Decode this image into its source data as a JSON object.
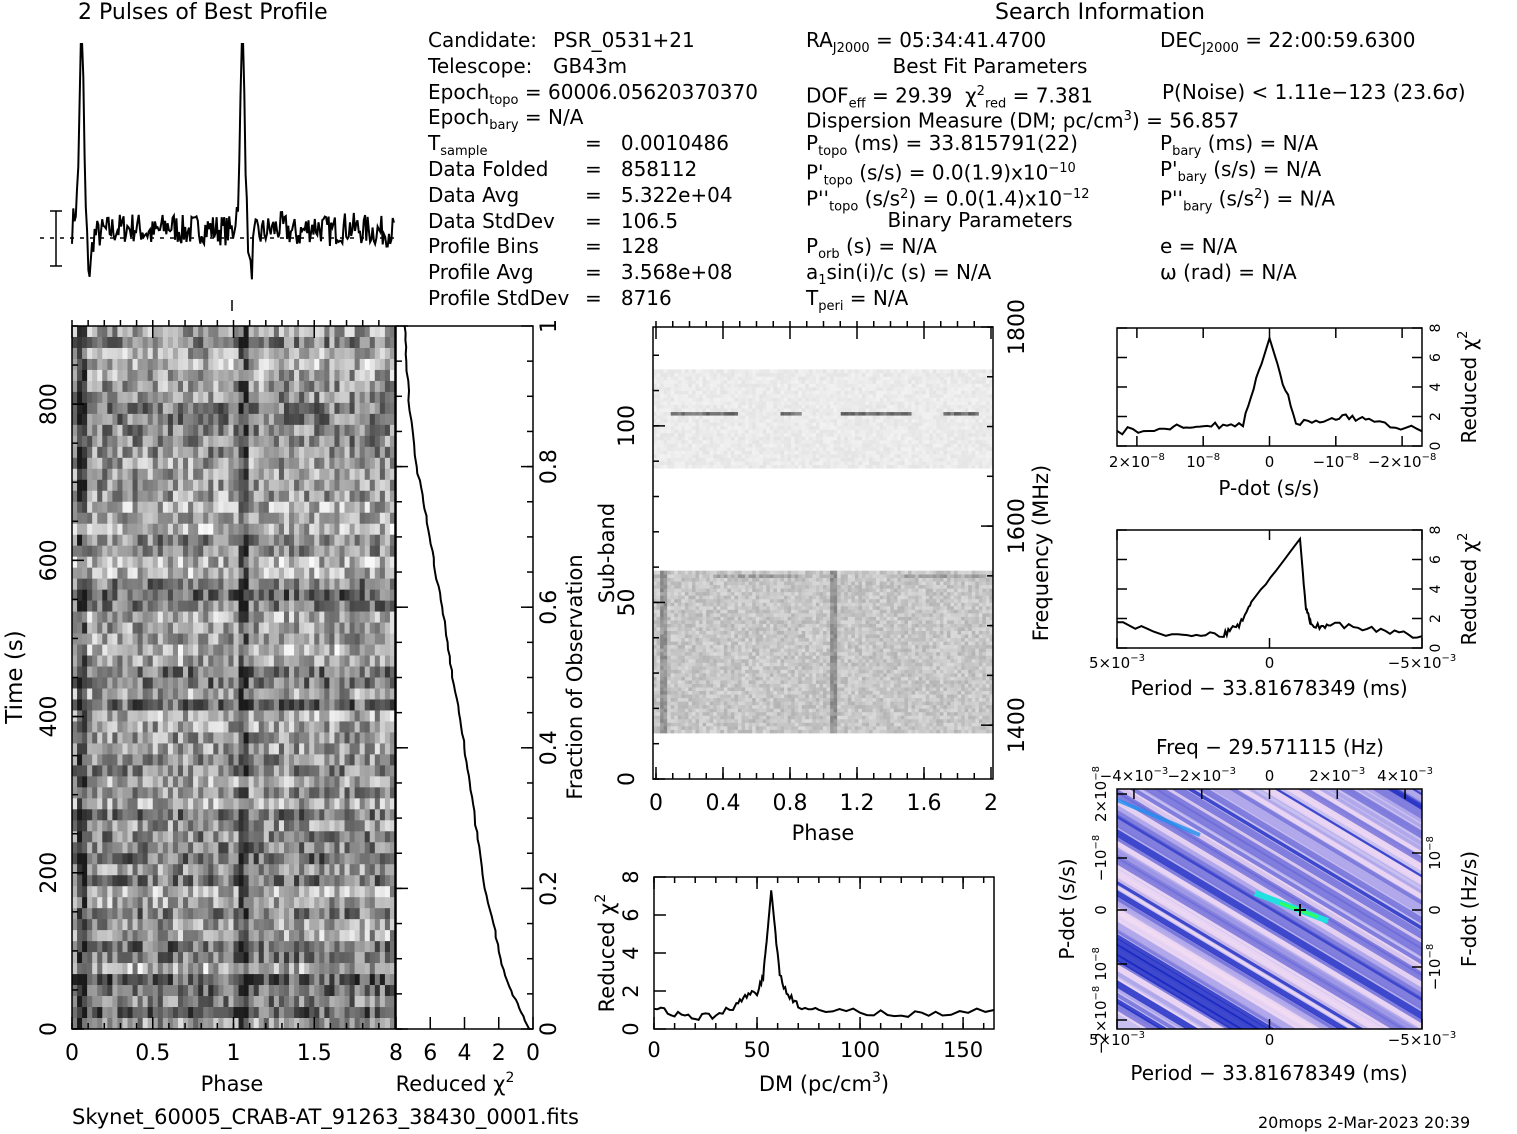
{
  "titles": {
    "profile": "2 Pulses of Best Profile",
    "search": "Search Information",
    "best_fit": "Best Fit Parameters",
    "binary": "Binary Parameters",
    "freq": "Freq − 29.571115 (Hz)"
  },
  "footer": {
    "filename": "Skynet_60005_CRAB-AT_91263_38430_0001.fits",
    "stamp": "20mops   2-Mar-2023 20:39"
  },
  "info": {
    "candidate_label": "Candidate:",
    "candidate_value": "PSR_0531+21",
    "telescope_label": "Telescope:",
    "telescope_value": "GB43m",
    "epoch_topo": "60006.05620370370",
    "epoch_bary": "N/A",
    "t_sample": "0.0010486",
    "data_folded_label": "Data Folded",
    "data_folded": "858112",
    "data_avg_label": "Data Avg",
    "data_avg": "5.322e+04",
    "data_stddev_label": "Data StdDev",
    "data_stddev": "106.5",
    "profile_bins_label": "Profile Bins",
    "profile_bins": "128",
    "profile_avg_label": "Profile Avg",
    "profile_avg": "3.568e+08",
    "profile_stddev_label": "Profile StdDev",
    "profile_stddev": "8716",
    "ra": "05:34:41.4700",
    "dec": "22:00:59.6300",
    "dof_eff": "29.39",
    "chi2_red": "7.381",
    "p_noise": "P(Noise) < 1.11e−123  (23.6σ)",
    "dm_line": "Dispersion Measure (DM; pc/cm",
    "dm_value": ") = 56.857",
    "p_topo": "(ms) =  33.815791(22)",
    "p_bary": "(ms) = N/A",
    "pd_topo": "(s/s) = 0.0(1.9)x10",
    "pd_topo_exp": "−10",
    "pd_bary": "(s/s) = N/A",
    "pdd_topo": ") = 0.0(1.4)x10",
    "pdd_topo_exp": "−12",
    "pdd_bary": ") = N/A",
    "p_orb": "(s) = N/A",
    "e": "e = N/A",
    "a1sini": "sin(i)/c (s) = N/A",
    "omega": "ω (rad) = N/A",
    "t_peri": "= N/A"
  },
  "labels": {
    "time_s": "Time (s)",
    "phase": "Phase",
    "reduced_chi2": "Reduced χ",
    "fraction_obs": "Fraction of Observation",
    "sub_band": "Sub-band",
    "frequency": "Frequency (MHz)",
    "dm_axis": "DM (pc/cm",
    "pdot_axis": "P-dot (s/s)",
    "period_axis": "Period − 33.81678349 (ms)",
    "fdot_axis": "F-dot (Hz/s)"
  },
  "ticks": {
    "time": [
      "0",
      "200",
      "400",
      "600",
      "800"
    ],
    "phase_time": [
      "0",
      "0.5",
      "1",
      "1.5"
    ],
    "chi2_bottom": [
      "8",
      "6",
      "4",
      "2",
      "0"
    ],
    "fraction": [
      "0",
      "0.2",
      "0.4",
      "0.6",
      "0.8",
      "1"
    ],
    "subband": [
      "0",
      "50",
      "100"
    ],
    "freq_mhz": [
      "1400",
      "1600",
      "1800"
    ],
    "phase_sub": [
      "0",
      "0.4",
      "0.8",
      "1.2",
      "1.6",
      "2"
    ],
    "chi2_small": [
      "0",
      "2",
      "4",
      "6",
      "8"
    ],
    "dm": [
      "0",
      "50",
      "100",
      "150"
    ],
    "pdot_top": [
      "2×10",
      "10",
      "0",
      "−10",
      "−2×10"
    ],
    "pdot_exp": [
      "−8",
      "−8",
      "",
      "−8",
      "−8"
    ],
    "period": [
      "5×10",
      "0",
      "−5×10"
    ],
    "period_exp": [
      "−3",
      "",
      "−3"
    ],
    "freq_top": [
      "−4×10",
      "−2×10",
      "0",
      "2×10",
      "4×10"
    ],
    "freq_top_exp": [
      "−3",
      "−3",
      "",
      "−3",
      "−3"
    ],
    "pd_left": [
      "2×10",
      "−10",
      "0",
      "10",
      "−2×10"
    ],
    "fd_right": [
      "10",
      "0",
      "−10"
    ]
  },
  "colors": {
    "map_dark": "#1020c0",
    "map_light": "#f4ddf4",
    "map_cyan": "#20e0e0"
  },
  "chart_data": [
    {
      "type": "line",
      "title": "2 Pulses of Best Profile",
      "x": [
        0,
        0.06,
        0.1,
        0.2,
        0.3,
        0.4,
        0.5,
        0.6,
        0.7,
        0.8,
        0.9,
        1.0,
        1.06,
        1.1,
        1.2,
        1.3,
        1.4,
        1.5,
        1.6,
        1.7,
        1.8,
        1.9,
        2.0
      ],
      "y": [
        0.1,
        1.0,
        -0.1,
        0.05,
        0.1,
        0.12,
        0.0,
        0.15,
        0.05,
        0.1,
        0.08,
        0.05,
        1.0,
        -0.1,
        0.05,
        0.12,
        0.0,
        0.15,
        0.05,
        0.12,
        0.08,
        0.05,
        0.05
      ]
    },
    {
      "type": "heatmap",
      "xlabel": "Phase",
      "ylabel": "Time (s)",
      "xlim": [
        0,
        2
      ],
      "ylim": [
        0,
        900
      ]
    },
    {
      "type": "line",
      "xlabel": "Reduced χ2",
      "ylabel": "Fraction of Observation",
      "x": [
        0.2,
        0.8,
        1.4,
        1.9,
        2.3,
        2.8,
        3.1,
        3.4,
        3.7,
        4.0,
        4.3,
        4.7,
        5.0,
        5.3,
        5.7,
        6.0,
        6.4,
        6.8,
        7.2,
        7.4,
        7.5
      ],
      "y": [
        0.0,
        0.03,
        0.06,
        0.1,
        0.15,
        0.2,
        0.25,
        0.3,
        0.35,
        0.4,
        0.45,
        0.5,
        0.55,
        0.6,
        0.65,
        0.7,
        0.75,
        0.8,
        0.88,
        0.95,
        1.0
      ],
      "xlim": [
        8,
        0
      ],
      "ylim": [
        0,
        1
      ]
    },
    {
      "type": "heatmap",
      "xlabel": "Phase",
      "ylabel": "Sub-band",
      "xlim": [
        0,
        2
      ],
      "ylim": [
        0,
        128
      ],
      "y2label": "Frequency (MHz)"
    },
    {
      "type": "line",
      "xlabel": "DM (pc/cm3)",
      "ylabel": "Reduced χ2",
      "x": [
        0,
        10,
        20,
        30,
        40,
        45,
        50,
        53,
        55,
        56.9,
        59,
        61,
        65,
        70,
        80,
        100,
        120,
        140,
        165
      ],
      "y": [
        1.2,
        0.8,
        0.6,
        0.7,
        1.2,
        1.8,
        1.9,
        2.8,
        5.0,
        7.3,
        5.0,
        2.8,
        1.8,
        1.2,
        0.9,
        0.9,
        0.8,
        0.8,
        1.0
      ],
      "xlim": [
        0,
        165
      ],
      "ylim": [
        0,
        8
      ]
    },
    {
      "type": "line",
      "xlabel": "P-dot (s/s)",
      "ylabel": "Reduced χ2",
      "x": [
        2.3e-08,
        1.5e-08,
        1e-08,
        4e-09,
        0,
        -4e-09,
        -1e-08,
        -1.5e-08,
        -2.3e-08
      ],
      "y": [
        1.0,
        1.2,
        1.3,
        1.5,
        7.3,
        1.5,
        2.0,
        1.7,
        1.0
      ],
      "xlim": [
        2.3e-08,
        -2.3e-08
      ],
      "ylim": [
        0,
        8
      ]
    },
    {
      "type": "line",
      "xlabel": "Period − 33.81678349 (ms)",
      "ylabel": "Reduced χ2",
      "x": [
        0.005,
        0.003,
        0.0015,
        0.001,
        0.0006,
        -0.001,
        -0.0012,
        -0.0014,
        -0.002,
        -0.0035,
        -0.005
      ],
      "y": [
        1.8,
        0.8,
        0.9,
        1.6,
        3.0,
        7.4,
        2.6,
        1.4,
        1.6,
        1.2,
        0.8
      ],
      "xlim": [
        0.005,
        -0.005
      ],
      "ylim": [
        0,
        8
      ]
    },
    {
      "type": "heatmap",
      "xlabel": "Period − 33.81678349 (ms)",
      "ylabel": "P-dot (s/s)",
      "title": "Freq − 29.571115 (Hz)",
      "y2label": "F-dot (Hz/s)"
    }
  ]
}
